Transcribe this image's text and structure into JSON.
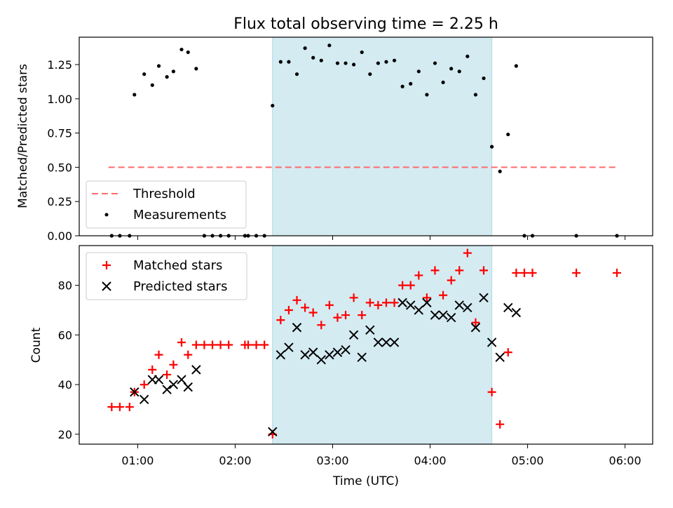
{
  "title": "Flux total observing time = 2.25 h",
  "xlabel": "Time (UTC)",
  "colors": {
    "shade": "#add8e6",
    "threshold": "#ff6b6b",
    "matched": "#ff0000",
    "predicted": "#000000",
    "measurement": "#000000"
  },
  "chart_data": [
    {
      "type": "scatter",
      "ylabel": "Matched/Predicted stars",
      "xlim": [
        "00:24",
        "06:17"
      ],
      "ylim": [
        0,
        1.45
      ],
      "yticks": [
        0.0,
        0.25,
        0.5,
        0.75,
        1.0,
        1.25
      ],
      "ytick_labels": [
        "0.00",
        "0.25",
        "0.50",
        "0.75",
        "1.00",
        "1.25"
      ],
      "shaded_span": [
        "02:23",
        "04:38"
      ],
      "threshold": {
        "name": "Threshold",
        "y": 0.5,
        "x": [
          "00:42",
          "05:56"
        ]
      },
      "legend": [
        "Threshold",
        "Measurements"
      ],
      "legend_position": "lower-left",
      "series": [
        {
          "name": "Measurements",
          "points": [
            [
              "00:44",
              0.0
            ],
            [
              "00:49",
              0.0
            ],
            [
              "00:55",
              0.0
            ],
            [
              "00:58",
              1.03
            ],
            [
              "01:04",
              1.18
            ],
            [
              "01:09",
              1.1
            ],
            [
              "01:13",
              1.24
            ],
            [
              "01:18",
              1.16
            ],
            [
              "01:22",
              1.2
            ],
            [
              "01:27",
              1.36
            ],
            [
              "01:31",
              1.34
            ],
            [
              "01:36",
              1.22
            ],
            [
              "01:41",
              0.0
            ],
            [
              "01:46",
              0.0
            ],
            [
              "01:51",
              0.0
            ],
            [
              "01:56",
              0.0
            ],
            [
              "02:06",
              0.0
            ],
            [
              "02:08",
              0.0
            ],
            [
              "02:13",
              0.0
            ],
            [
              "02:18",
              0.0
            ],
            [
              "02:23",
              0.95
            ],
            [
              "02:28",
              1.27
            ],
            [
              "02:33",
              1.27
            ],
            [
              "02:38",
              1.18
            ],
            [
              "02:43",
              1.37
            ],
            [
              "02:48",
              1.3
            ],
            [
              "02:53",
              1.28
            ],
            [
              "02:58",
              1.39
            ],
            [
              "03:03",
              1.26
            ],
            [
              "03:08",
              1.26
            ],
            [
              "03:13",
              1.25
            ],
            [
              "03:18",
              1.34
            ],
            [
              "03:23",
              1.18
            ],
            [
              "03:28",
              1.26
            ],
            [
              "03:33",
              1.27
            ],
            [
              "03:38",
              1.28
            ],
            [
              "03:43",
              1.09
            ],
            [
              "03:48",
              1.11
            ],
            [
              "03:53",
              1.2
            ],
            [
              "03:58",
              1.03
            ],
            [
              "04:03",
              1.26
            ],
            [
              "04:08",
              1.12
            ],
            [
              "04:13",
              1.22
            ],
            [
              "04:18",
              1.2
            ],
            [
              "04:23",
              1.31
            ],
            [
              "04:28",
              1.03
            ],
            [
              "04:33",
              1.15
            ],
            [
              "04:38",
              0.65
            ],
            [
              "04:43",
              0.47
            ],
            [
              "04:48",
              0.74
            ],
            [
              "04:53",
              1.24
            ],
            [
              "04:58",
              0.0
            ],
            [
              "05:03",
              0.0
            ],
            [
              "05:30",
              0.0
            ],
            [
              "05:55",
              0.0
            ]
          ]
        }
      ]
    },
    {
      "type": "scatter",
      "ylabel": "Count",
      "xlim": [
        "00:24",
        "06:17"
      ],
      "ylim": [
        16,
        96
      ],
      "yticks": [
        20,
        40,
        60,
        80
      ],
      "ytick_labels": [
        "20",
        "40",
        "60",
        "80"
      ],
      "xticks": [
        "01:00",
        "02:00",
        "03:00",
        "04:00",
        "05:00",
        "06:00"
      ],
      "shaded_span": [
        "02:23",
        "04:38"
      ],
      "legend": [
        "Matched stars",
        "Predicted stars"
      ],
      "legend_position": "upper-left",
      "series": [
        {
          "name": "Matched stars",
          "marker": "+",
          "points": [
            [
              "00:44",
              31
            ],
            [
              "00:49",
              31
            ],
            [
              "00:55",
              31
            ],
            [
              "00:58",
              37
            ],
            [
              "01:04",
              40
            ],
            [
              "01:09",
              46
            ],
            [
              "01:13",
              52
            ],
            [
              "01:18",
              44
            ],
            [
              "01:22",
              48
            ],
            [
              "01:27",
              57
            ],
            [
              "01:31",
              52
            ],
            [
              "01:36",
              56
            ],
            [
              "01:41",
              56
            ],
            [
              "01:46",
              56
            ],
            [
              "01:51",
              56
            ],
            [
              "01:56",
              56
            ],
            [
              "02:06",
              56
            ],
            [
              "02:08",
              56
            ],
            [
              "02:13",
              56
            ],
            [
              "02:18",
              56
            ],
            [
              "02:23",
              20
            ],
            [
              "02:28",
              66
            ],
            [
              "02:33",
              70
            ],
            [
              "02:38",
              74
            ],
            [
              "02:43",
              71
            ],
            [
              "02:48",
              69
            ],
            [
              "02:53",
              64
            ],
            [
              "02:58",
              72
            ],
            [
              "03:03",
              67
            ],
            [
              "03:08",
              68
            ],
            [
              "03:13",
              75
            ],
            [
              "03:18",
              68
            ],
            [
              "03:23",
              73
            ],
            [
              "03:28",
              72
            ],
            [
              "03:33",
              73
            ],
            [
              "03:38",
              73
            ],
            [
              "03:43",
              80
            ],
            [
              "03:48",
              80
            ],
            [
              "03:53",
              84
            ],
            [
              "03:58",
              75
            ],
            [
              "04:03",
              86
            ],
            [
              "04:08",
              76
            ],
            [
              "04:13",
              82
            ],
            [
              "04:18",
              86
            ],
            [
              "04:23",
              93
            ],
            [
              "04:28",
              65
            ],
            [
              "04:33",
              86
            ],
            [
              "04:38",
              37
            ],
            [
              "04:43",
              24
            ],
            [
              "04:48",
              53
            ],
            [
              "04:53",
              85
            ],
            [
              "04:58",
              85
            ],
            [
              "05:03",
              85
            ],
            [
              "05:30",
              85
            ],
            [
              "05:55",
              85
            ]
          ]
        },
        {
          "name": "Predicted stars",
          "marker": "x",
          "points": [
            [
              "00:58",
              37
            ],
            [
              "01:04",
              34
            ],
            [
              "01:09",
              42
            ],
            [
              "01:13",
              42
            ],
            [
              "01:18",
              38
            ],
            [
              "01:22",
              40
            ],
            [
              "01:27",
              42
            ],
            [
              "01:31",
              39
            ],
            [
              "01:36",
              46
            ],
            [
              "02:23",
              21
            ],
            [
              "02:28",
              52
            ],
            [
              "02:33",
              55
            ],
            [
              "02:38",
              63
            ],
            [
              "02:43",
              52
            ],
            [
              "02:48",
              53
            ],
            [
              "02:53",
              50
            ],
            [
              "02:58",
              52
            ],
            [
              "03:03",
              53
            ],
            [
              "03:08",
              54
            ],
            [
              "03:13",
              60
            ],
            [
              "03:18",
              51
            ],
            [
              "03:23",
              62
            ],
            [
              "03:28",
              57
            ],
            [
              "03:33",
              57
            ],
            [
              "03:38",
              57
            ],
            [
              "03:43",
              73
            ],
            [
              "03:48",
              72
            ],
            [
              "03:53",
              70
            ],
            [
              "03:58",
              73
            ],
            [
              "04:03",
              68
            ],
            [
              "04:08",
              68
            ],
            [
              "04:13",
              67
            ],
            [
              "04:18",
              72
            ],
            [
              "04:23",
              71
            ],
            [
              "04:28",
              63
            ],
            [
              "04:33",
              75
            ],
            [
              "04:38",
              57
            ],
            [
              "04:43",
              51
            ],
            [
              "04:48",
              71
            ],
            [
              "04:53",
              69
            ]
          ]
        }
      ]
    }
  ]
}
